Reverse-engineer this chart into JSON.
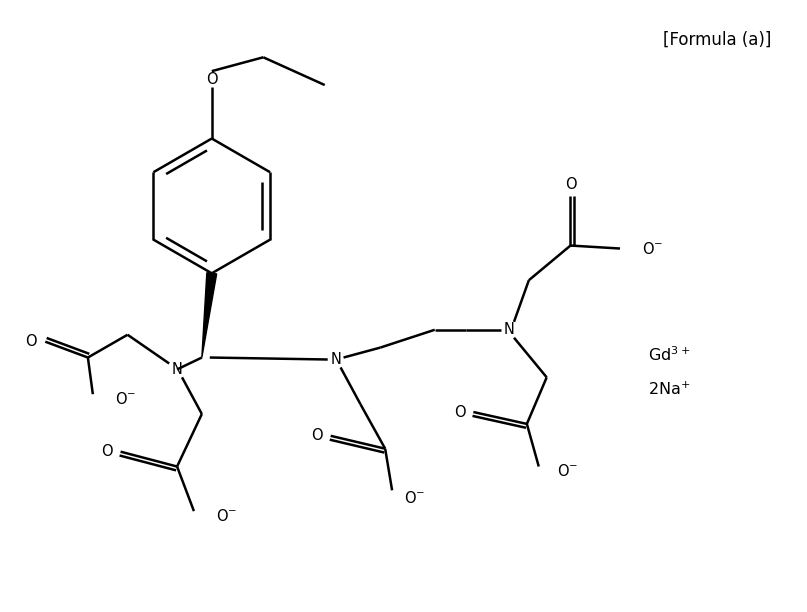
{
  "title": "[Formula (a)]",
  "line_color": "#000000",
  "line_width": 1.8,
  "background_color": "#ffffff",
  "text_fontsize": 10.5,
  "gd_label": "Gd$^{3+}$",
  "na_label": "2Na$^{+}$"
}
